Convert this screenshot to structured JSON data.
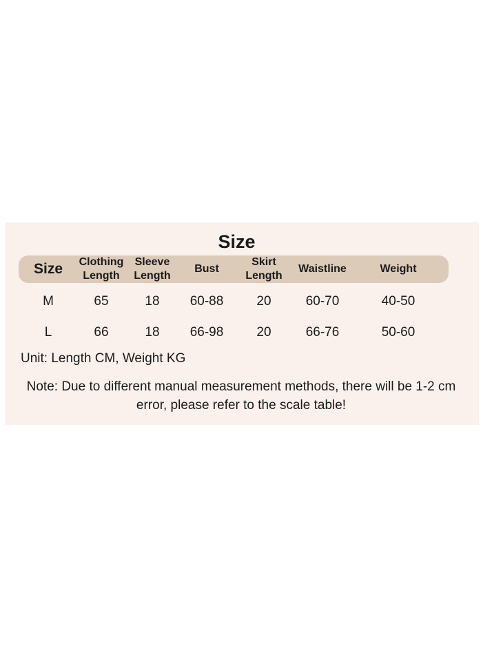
{
  "title": "Size",
  "table": {
    "headers": [
      "Size",
      "Clothing Length",
      "Sleeve Length",
      "Bust",
      "Skirt Length",
      "Waistline",
      "Weight"
    ],
    "rows": [
      [
        "M",
        "65",
        "18",
        "60-88",
        "20",
        "60-70",
        "40-50"
      ],
      [
        "L",
        "66",
        "18",
        "66-98",
        "20",
        "66-76",
        "50-60"
      ]
    ]
  },
  "unit": "Unit: Length CM, Weight KG",
  "note": "Note: Due to different manual measurement methods, there will be 1-2 cm error, please refer to the scale table!"
}
